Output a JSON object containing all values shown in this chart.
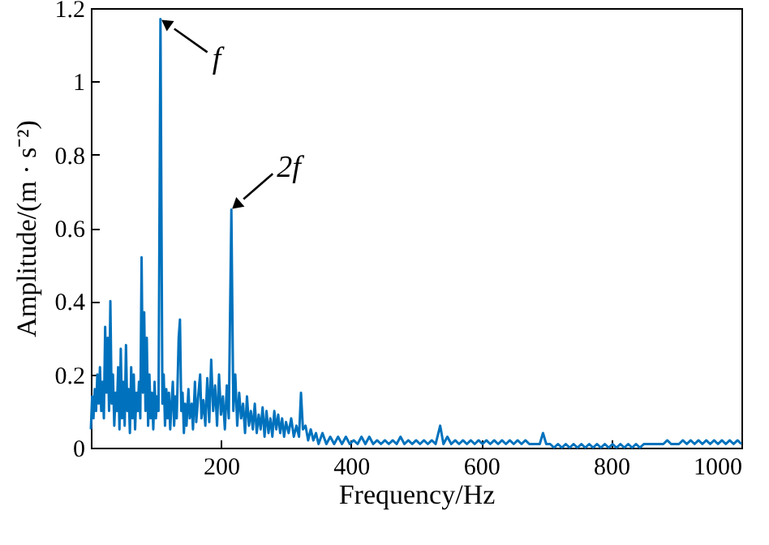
{
  "chart_data": {
    "type": "line",
    "xlabel": "Frequency/Hz",
    "ylabel": "Amplitude/(m · s⁻²)",
    "xlim": [
      0,
      1000
    ],
    "ylim": [
      0,
      1.2
    ],
    "xticks": [
      200,
      400,
      600,
      800,
      1000
    ],
    "yticks": [
      0,
      0.2,
      0.4,
      0.6,
      0.8,
      1,
      1.2
    ],
    "annotations": [
      {
        "text": "f",
        "x": 107,
        "y": 1.17
      },
      {
        "text": "2f",
        "x": 216,
        "y": 0.65
      }
    ],
    "series": [
      {
        "color": "#0072bd",
        "x": [
          0,
          2,
          4,
          6,
          8,
          10,
          12,
          14,
          16,
          18,
          20,
          22,
          24,
          26,
          28,
          30,
          32,
          34,
          36,
          38,
          40,
          42,
          44,
          46,
          48,
          50,
          52,
          54,
          56,
          58,
          60,
          62,
          64,
          66,
          68,
          70,
          72,
          74,
          76,
          78,
          80,
          82,
          84,
          86,
          88,
          90,
          92,
          94,
          96,
          98,
          100,
          102,
          104,
          107,
          110,
          112,
          114,
          116,
          118,
          120,
          122,
          124,
          126,
          128,
          130,
          132,
          135,
          137,
          139,
          141,
          143,
          145,
          147,
          150,
          152,
          155,
          157,
          160,
          162,
          165,
          168,
          170,
          173,
          176,
          179,
          182,
          185,
          188,
          191,
          194,
          197,
          200,
          203,
          206,
          209,
          212,
          216,
          219,
          222,
          225,
          228,
          231,
          234,
          237,
          240,
          243,
          246,
          249,
          252,
          255,
          258,
          261,
          264,
          267,
          270,
          273,
          276,
          279,
          282,
          285,
          288,
          291,
          294,
          297,
          300,
          304,
          308,
          312,
          316,
          320,
          323,
          326,
          330,
          334,
          338,
          342,
          346,
          350,
          356,
          362,
          368,
          374,
          380,
          386,
          392,
          398,
          404,
          410,
          416,
          422,
          428,
          434,
          440,
          446,
          452,
          458,
          464,
          470,
          476,
          482,
          488,
          494,
          500,
          506,
          512,
          518,
          524,
          530,
          537,
          542,
          548,
          554,
          560,
          566,
          572,
          578,
          584,
          590,
          596,
          602,
          608,
          614,
          620,
          626,
          632,
          638,
          644,
          650,
          656,
          662,
          668,
          674,
          680,
          686,
          690,
          695,
          700,
          706,
          712,
          718,
          724,
          730,
          736,
          742,
          748,
          754,
          760,
          766,
          772,
          778,
          784,
          790,
          796,
          802,
          808,
          814,
          820,
          826,
          832,
          838,
          844,
          850,
          856,
          862,
          868,
          874,
          880,
          886,
          892,
          898,
          904,
          910,
          916,
          922,
          928,
          934,
          940,
          946,
          952,
          958,
          964,
          970,
          976,
          982,
          988,
          994,
          1000
        ],
        "values": [
          0.05,
          0.14,
          0.08,
          0.16,
          0.1,
          0.2,
          0.12,
          0.22,
          0.1,
          0.18,
          0.08,
          0.33,
          0.15,
          0.3,
          0.1,
          0.4,
          0.12,
          0.2,
          0.06,
          0.15,
          0.1,
          0.22,
          0.05,
          0.27,
          0.08,
          0.18,
          0.06,
          0.28,
          0.1,
          0.16,
          0.04,
          0.22,
          0.08,
          0.2,
          0.05,
          0.15,
          0.1,
          0.18,
          0.08,
          0.52,
          0.15,
          0.37,
          0.1,
          0.3,
          0.06,
          0.2,
          0.08,
          0.15,
          0.05,
          0.18,
          0.08,
          0.14,
          0.1,
          1.17,
          0.12,
          0.2,
          0.06,
          0.16,
          0.08,
          0.15,
          0.05,
          0.12,
          0.18,
          0.06,
          0.14,
          0.08,
          0.3,
          0.35,
          0.1,
          0.15,
          0.04,
          0.12,
          0.06,
          0.16,
          0.08,
          0.12,
          0.05,
          0.18,
          0.07,
          0.14,
          0.2,
          0.08,
          0.13,
          0.06,
          0.19,
          0.07,
          0.24,
          0.1,
          0.17,
          0.06,
          0.2,
          0.09,
          0.14,
          0.05,
          0.17,
          0.08,
          0.65,
          0.1,
          0.2,
          0.06,
          0.15,
          0.08,
          0.12,
          0.04,
          0.14,
          0.06,
          0.1,
          0.05,
          0.12,
          0.04,
          0.09,
          0.05,
          0.11,
          0.03,
          0.1,
          0.04,
          0.08,
          0.03,
          0.1,
          0.05,
          0.09,
          0.04,
          0.08,
          0.03,
          0.07,
          0.04,
          0.08,
          0.03,
          0.06,
          0.03,
          0.15,
          0.05,
          0.06,
          0.02,
          0.05,
          0.02,
          0.04,
          0.01,
          0.04,
          0.01,
          0.03,
          0.01,
          0.03,
          0.01,
          0.03,
          0.01,
          0.02,
          0.01,
          0.03,
          0.01,
          0.03,
          0.01,
          0.02,
          0.01,
          0.02,
          0.01,
          0.02,
          0.01,
          0.03,
          0.01,
          0.02,
          0.01,
          0.02,
          0.01,
          0.02,
          0.01,
          0.02,
          0.01,
          0.06,
          0.01,
          0.03,
          0.01,
          0.02,
          0.01,
          0.02,
          0.01,
          0.02,
          0.01,
          0.02,
          0.01,
          0.02,
          0.01,
          0.02,
          0.01,
          0.02,
          0.01,
          0.02,
          0.01,
          0.02,
          0.01,
          0.02,
          0.01,
          0.01,
          0.01,
          0.01,
          0.04,
          0.01,
          0.01,
          0.0,
          0.01,
          0.0,
          0.01,
          0.0,
          0.01,
          0.0,
          0.01,
          0.0,
          0.01,
          0.0,
          0.01,
          0.0,
          0.01,
          0.0,
          0.01,
          0.0,
          0.01,
          0.0,
          0.01,
          0.0,
          0.01,
          0.0,
          0.01,
          0.01,
          0.01,
          0.01,
          0.01,
          0.01,
          0.02,
          0.01,
          0.01,
          0.01,
          0.02,
          0.01,
          0.02,
          0.01,
          0.02,
          0.01,
          0.02,
          0.01,
          0.02,
          0.01,
          0.02,
          0.01,
          0.02,
          0.01,
          0.02,
          0.01
        ]
      }
    ]
  }
}
